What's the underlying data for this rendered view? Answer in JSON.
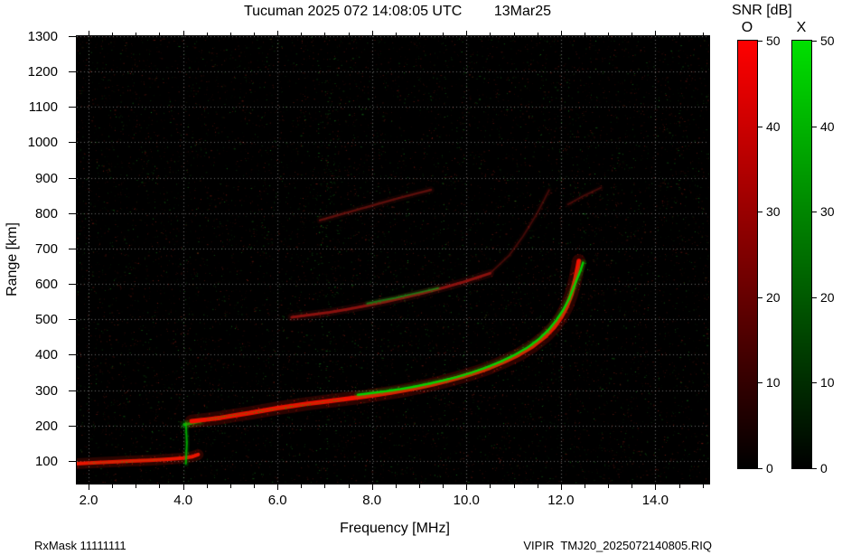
{
  "title": "Tucuman 2025 072 14:08:05 UTC        13Mar25",
  "footer": {
    "left": "RxMask 11111111",
    "right": "VIPIR  TMJ20_2025072140805.RIQ"
  },
  "colorbar": {
    "title": "SNR [dB]",
    "min": 0,
    "max": 50,
    "ticks": [
      0,
      10,
      20,
      30,
      40,
      50
    ],
    "bars": [
      {
        "label": "O",
        "color": "#ff0000"
      },
      {
        "label": "X",
        "color": "#00e000"
      }
    ]
  },
  "chart_data": {
    "type": "heatmap",
    "title": "Tucuman 2025 072 14:08:05 UTC 13Mar25",
    "xlabel": "Frequency [MHz]",
    "ylabel": "Range [km]",
    "xlim": [
      1.75,
      15.14
    ],
    "ylim": [
      36,
      1300
    ],
    "background": "#000000",
    "grid_color": "rgba(255,255,255,0.42)",
    "xticks": [
      {
        "v": 2,
        "label": "2.0"
      },
      {
        "v": 4,
        "label": "4.0"
      },
      {
        "v": 6,
        "label": "6.0"
      },
      {
        "v": 8,
        "label": "8.0"
      },
      {
        "v": 10,
        "label": "10.0"
      },
      {
        "v": 12,
        "label": "12.0"
      },
      {
        "v": 14,
        "label": "14.0"
      }
    ],
    "yticks": [
      {
        "v": 100,
        "label": "100"
      },
      {
        "v": 200,
        "label": "200"
      },
      {
        "v": 300,
        "label": "300"
      },
      {
        "v": 400,
        "label": "400"
      },
      {
        "v": 500,
        "label": "500"
      },
      {
        "v": 600,
        "label": "600"
      },
      {
        "v": 700,
        "label": "700"
      },
      {
        "v": 800,
        "label": "800"
      },
      {
        "v": 900,
        "label": "900"
      },
      {
        "v": 1000,
        "label": "1000"
      },
      {
        "v": 1100,
        "label": "1100"
      },
      {
        "v": 1200,
        "label": "1200"
      },
      {
        "v": 1300,
        "label": "1300"
      }
    ],
    "noise": {
      "seed": 1337,
      "red_dots": 7000,
      "green_dots": 3600,
      "red_rgb": "205,45,30",
      "green_rgb": "40,200,40"
    },
    "stripes": [
      {
        "f": 2.6,
        "color": "red",
        "p": 0.03
      },
      {
        "f": 3.45,
        "color": "red",
        "p": 0.05
      },
      {
        "f": 4.06,
        "color": "green",
        "p": 0.05
      },
      {
        "f": 5.8,
        "color": "green",
        "p": 0.03
      },
      {
        "f": 6.55,
        "color": "red",
        "p": 0.05
      },
      {
        "f": 6.9,
        "color": "green",
        "p": 0.09
      },
      {
        "f": 7.08,
        "color": "green",
        "p": 0.12
      },
      {
        "f": 7.25,
        "color": "green",
        "p": 0.07
      },
      {
        "f": 7.6,
        "color": "red",
        "p": 0.04
      },
      {
        "f": 8.75,
        "color": "green",
        "p": 0.03
      },
      {
        "f": 9.55,
        "color": "green",
        "p": 0.05
      },
      {
        "f": 9.95,
        "color": "green",
        "p": 0.06
      },
      {
        "f": 10.6,
        "color": "red",
        "p": 0.04
      },
      {
        "f": 11.3,
        "color": "red",
        "p": 0.04
      },
      {
        "f": 11.6,
        "color": "green",
        "p": 0.045
      },
      {
        "f": 12.0,
        "color": "red",
        "p": 0.045
      },
      {
        "f": 12.35,
        "color": "red",
        "p": 0.05
      },
      {
        "f": 12.75,
        "color": "green",
        "p": 0.04
      },
      {
        "f": 13.1,
        "color": "red",
        "p": 0.04
      },
      {
        "f": 13.55,
        "color": "green",
        "p": 0.055
      },
      {
        "f": 14.2,
        "color": "red",
        "p": 0.03
      },
      {
        "f": 14.5,
        "color": "green",
        "p": 0.045
      }
    ],
    "traces": [
      {
        "name": "E-layer-O",
        "mode": "O",
        "color": "#e81500",
        "width": 4,
        "alpha": 1,
        "speckle": 0.55,
        "points": [
          [
            1.75,
            92
          ],
          [
            2.1,
            95
          ],
          [
            2.5,
            97
          ],
          [
            2.9,
            100
          ],
          [
            3.3,
            102
          ],
          [
            3.7,
            105
          ],
          [
            4.0,
            108
          ],
          [
            4.2,
            112
          ],
          [
            4.32,
            118
          ]
        ]
      },
      {
        "name": "E-layer-X-sparse",
        "mode": "X",
        "color": "#20a020",
        "width": 1,
        "alpha": 0.15,
        "speckle": 0.3,
        "points": [
          [
            2.0,
            94
          ],
          [
            2.8,
            99
          ],
          [
            3.6,
            104
          ]
        ]
      },
      {
        "name": "X-vertical-4MHz",
        "mode": "X",
        "color": "#00b400",
        "width": 2,
        "alpha": 0.9,
        "speckle": 0.5,
        "points": [
          [
            4.06,
            92
          ],
          [
            4.08,
            150
          ],
          [
            4.06,
            208
          ]
        ]
      },
      {
        "name": "F-start-green-blob",
        "mode": "X",
        "color": "#00c800",
        "width": 3,
        "alpha": 0.85,
        "speckle": 0.5,
        "points": [
          [
            4.02,
            202
          ],
          [
            4.2,
            207
          ],
          [
            4.38,
            212
          ]
        ]
      },
      {
        "name": "F-trace-O",
        "mode": "O",
        "color": "#f01000",
        "width": 5,
        "alpha": 1,
        "speckle": 0.5,
        "points": [
          [
            4.18,
            212
          ],
          [
            4.5,
            217
          ],
          [
            4.8,
            222
          ],
          [
            5.1,
            229
          ],
          [
            5.4,
            235
          ],
          [
            5.7,
            242
          ],
          [
            6.0,
            249
          ],
          [
            6.3,
            255
          ],
          [
            6.6,
            261
          ],
          [
            6.9,
            266
          ],
          [
            7.2,
            271
          ],
          [
            7.5,
            276
          ],
          [
            7.8,
            281
          ],
          [
            8.1,
            287
          ],
          [
            8.4,
            293
          ],
          [
            8.7,
            300
          ],
          [
            9.0,
            308
          ],
          [
            9.3,
            317
          ],
          [
            9.6,
            327
          ],
          [
            9.9,
            338
          ],
          [
            10.2,
            350
          ],
          [
            10.5,
            364
          ],
          [
            10.8,
            381
          ],
          [
            11.1,
            400
          ],
          [
            11.4,
            424
          ],
          [
            11.65,
            450
          ],
          [
            11.85,
            477
          ],
          [
            12.0,
            505
          ],
          [
            12.12,
            535
          ],
          [
            12.22,
            570
          ],
          [
            12.3,
            610
          ],
          [
            12.36,
            650
          ],
          [
            12.38,
            665
          ]
        ]
      },
      {
        "name": "F-trace-X",
        "mode": "X",
        "color": "#00d800",
        "width": 2.5,
        "alpha": 0.95,
        "speckle": 0.5,
        "points": [
          [
            7.7,
            287
          ],
          [
            8.0,
            292
          ],
          [
            8.3,
            297
          ],
          [
            8.6,
            303
          ],
          [
            8.9,
            310
          ],
          [
            9.2,
            318
          ],
          [
            9.5,
            327
          ],
          [
            9.8,
            337
          ],
          [
            10.1,
            349
          ],
          [
            10.4,
            363
          ],
          [
            10.7,
            379
          ],
          [
            11.0,
            398
          ],
          [
            11.3,
            421
          ],
          [
            11.55,
            446
          ],
          [
            11.75,
            472
          ],
          [
            11.9,
            497
          ],
          [
            12.05,
            527
          ],
          [
            12.18,
            560
          ],
          [
            12.3,
            600
          ],
          [
            12.42,
            640
          ],
          [
            12.47,
            660
          ]
        ]
      },
      {
        "name": "F-trace-X-sparse-low",
        "mode": "X",
        "color": "#00b000",
        "width": 1,
        "alpha": 0.2,
        "speckle": 0.45,
        "points": [
          [
            4.5,
            218
          ],
          [
            5.0,
            228
          ],
          [
            5.5,
            238
          ],
          [
            6.0,
            248
          ],
          [
            6.5,
            258
          ],
          [
            7.0,
            267
          ],
          [
            7.4,
            273
          ]
        ]
      },
      {
        "name": "second-hop-O",
        "mode": "O",
        "color": "#9c1410",
        "width": 3,
        "alpha": 0.85,
        "speckle": 0.35,
        "points": [
          [
            6.3,
            506
          ],
          [
            6.7,
            513
          ],
          [
            7.1,
            520
          ],
          [
            7.5,
            529
          ],
          [
            7.9,
            539
          ],
          [
            8.3,
            550
          ],
          [
            8.7,
            562
          ],
          [
            9.1,
            575
          ],
          [
            9.5,
            589
          ],
          [
            9.9,
            604
          ],
          [
            10.2,
            617
          ],
          [
            10.5,
            630
          ]
        ]
      },
      {
        "name": "second-hop-O-steep",
        "mode": "O",
        "color": "#801210",
        "width": 2,
        "alpha": 0.45,
        "speckle": 0.25,
        "points": [
          [
            10.5,
            630
          ],
          [
            10.9,
            680
          ],
          [
            11.2,
            735
          ],
          [
            11.5,
            800
          ],
          [
            11.75,
            865
          ]
        ]
      },
      {
        "name": "second-hop-X",
        "mode": "X",
        "color": "#18a018",
        "width": 2,
        "alpha": 0.65,
        "speckle": 0.4,
        "points": [
          [
            7.9,
            545
          ],
          [
            8.2,
            553
          ],
          [
            8.5,
            561
          ],
          [
            8.8,
            570
          ],
          [
            9.1,
            579
          ],
          [
            9.4,
            588
          ]
        ]
      },
      {
        "name": "third-hop-O-left",
        "mode": "O",
        "color": "#7a1410",
        "width": 2.5,
        "alpha": 0.7,
        "speckle": 0.3,
        "points": [
          [
            6.9,
            780
          ],
          [
            7.3,
            795
          ],
          [
            7.7,
            810
          ],
          [
            8.1,
            825
          ],
          [
            8.5,
            840
          ],
          [
            8.9,
            854
          ],
          [
            9.25,
            866
          ]
        ]
      },
      {
        "name": "third-hop-O-right",
        "mode": "O",
        "color": "#6e120e",
        "width": 2,
        "alpha": 0.55,
        "speckle": 0.25,
        "points": [
          [
            12.15,
            825
          ],
          [
            12.5,
            850
          ],
          [
            12.85,
            872
          ]
        ]
      }
    ]
  }
}
